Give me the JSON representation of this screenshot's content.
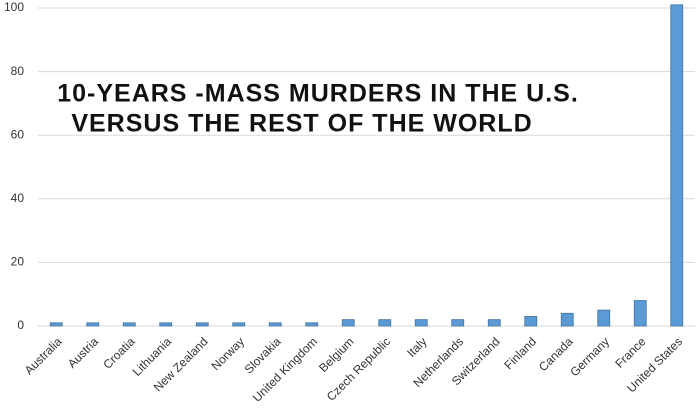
{
  "chart_data": {
    "type": "bar",
    "title": [
      "10-YEARS -MASS MURDERS IN THE U.S.",
      "VERSUS THE REST OF THE WORLD"
    ],
    "categories": [
      "Australia",
      "Austria",
      "Croatia",
      "Lithuania",
      "New Zealand",
      "Norway",
      "Slovakia",
      "United Kingdom",
      "Belgium",
      "Czech Republic",
      "Italy",
      "Netherlands",
      "Switzerland",
      "Finland",
      "Canada",
      "Germany",
      "France",
      "United States"
    ],
    "values": [
      1,
      1,
      1,
      1,
      1,
      1,
      1,
      1,
      2,
      2,
      2,
      2,
      2,
      3,
      4,
      5,
      8,
      101
    ],
    "color": "#5b9bd5",
    "ylim": [
      0,
      100
    ],
    "yticks": [
      0,
      20,
      40,
      60,
      80,
      100
    ],
    "grid": true
  }
}
